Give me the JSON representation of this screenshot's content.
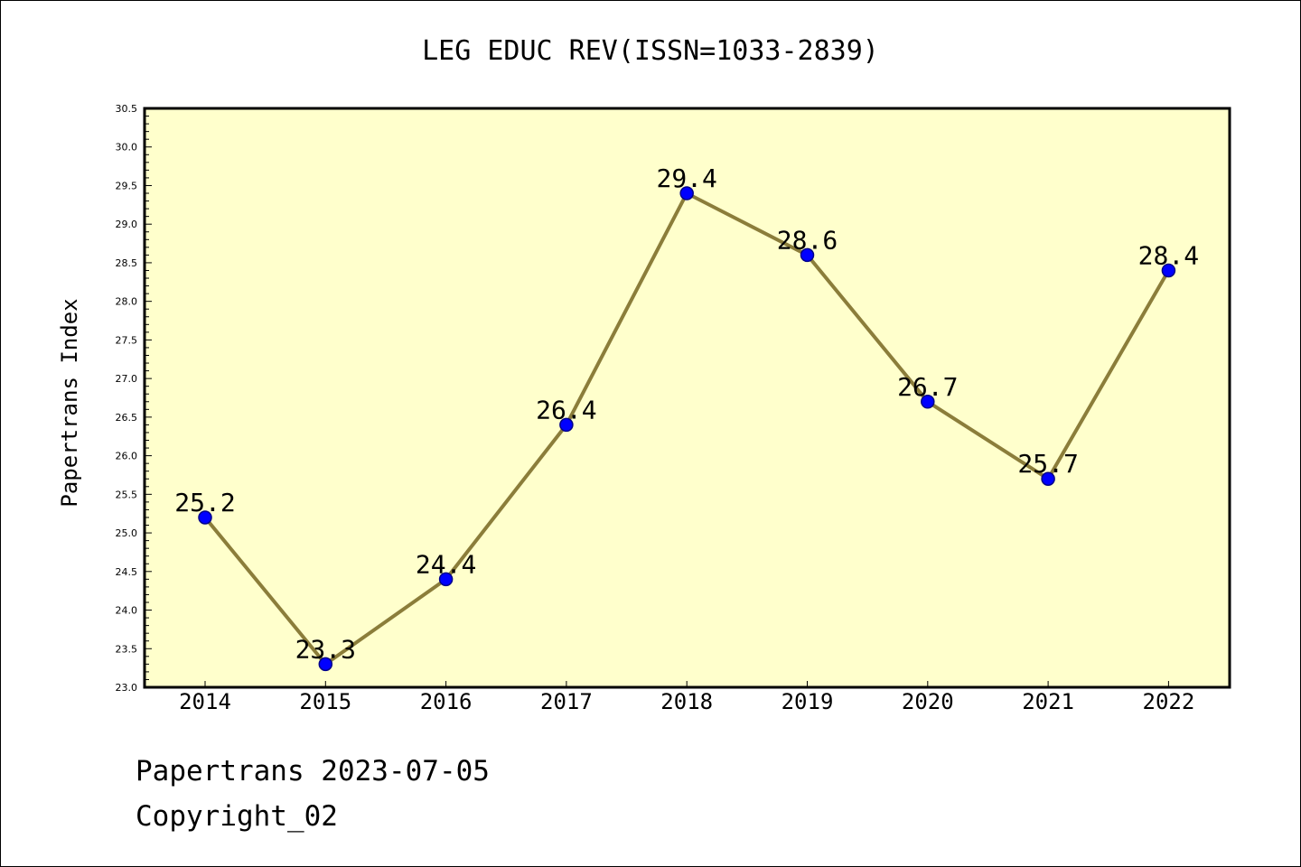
{
  "chart_data": {
    "type": "line",
    "title": "LEG EDUC REV(ISSN=1033-2839)",
    "ylabel": "Papertrans Index",
    "xlabel": "",
    "categories": [
      "2014",
      "2015",
      "2016",
      "2017",
      "2018",
      "2019",
      "2020",
      "2021",
      "2022"
    ],
    "values": [
      25.2,
      23.3,
      24.4,
      26.4,
      29.4,
      28.6,
      26.7,
      25.7,
      28.4
    ],
    "data_labels": [
      "25.2",
      "23.3",
      "24.4",
      "26.4",
      "29.4",
      "28.6",
      "26.7",
      "25.7",
      "28.4"
    ],
    "ylim": [
      23.0,
      30.5
    ],
    "yticks": [
      "23.0",
      "23.5",
      "24.0",
      "24.5",
      "25.0",
      "25.5",
      "26.0",
      "26.5",
      "27.0",
      "27.5",
      "28.0",
      "28.5",
      "29.0",
      "29.5",
      "30.0",
      "30.5"
    ],
    "grid": false,
    "legend": "none",
    "colors": {
      "plot_background": "#ffffcc",
      "line": "#8b7d3a",
      "marker": "#0000ff",
      "marker_edge": "#00008b"
    }
  },
  "footer": {
    "date_line": "Papertrans 2023-07-05",
    "copyright": "Copyright_02"
  }
}
